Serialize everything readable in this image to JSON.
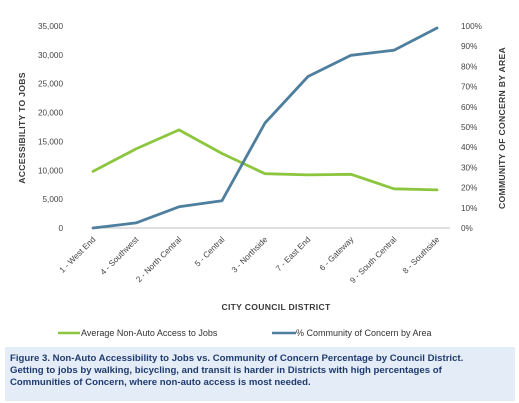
{
  "chart_data": {
    "type": "line",
    "categories": [
      "1 - West End",
      "4 - Southwest",
      "2 - North Central",
      "5 - Central",
      "3 - Northside",
      "7 - East End",
      "6 - Gateway",
      "9 - South Central",
      "8 - Southside"
    ],
    "series": [
      {
        "name": "Average Non-Auto Access to Jobs",
        "axis": "left",
        "color": "#8cc63f",
        "values": [
          9800,
          13700,
          17000,
          12900,
          9400,
          9200,
          9300,
          6800,
          6600
        ]
      },
      {
        "name": "% Community of Concern by Area",
        "axis": "right",
        "color": "#4f7f9e",
        "values": [
          0,
          2.5,
          10.5,
          13.5,
          52,
          75,
          85.5,
          88,
          99
        ]
      }
    ],
    "xlabel": "CITY COUNCIL DISTRICT",
    "ylabel": "ACCESSIBILITY TO JOBS",
    "y2label": "COMMUNITY OF CONCERN BY AREA",
    "ylim": [
      0,
      35000
    ],
    "y2lim": [
      0,
      100
    ],
    "yticks": [
      "0",
      "5,000",
      "10,000",
      "15,000",
      "20,000",
      "25,000",
      "30,000",
      "35,000"
    ],
    "y2ticks": [
      "0%",
      "10%",
      "20%",
      "30%",
      "40%",
      "50%",
      "60%",
      "70%",
      "80%",
      "90%",
      "100%"
    ],
    "grid": false,
    "legend_position": "bottom"
  },
  "caption": {
    "line1": "Figure 3.  Non-Auto Accessibility to Jobs vs. Community of Concern Percentage by Council District.",
    "line2": "Getting to jobs by walking, bicycling, and transit is harder in Districts with high percentages of",
    "line3": "Communities of Concern, where non-auto access is most needed."
  }
}
